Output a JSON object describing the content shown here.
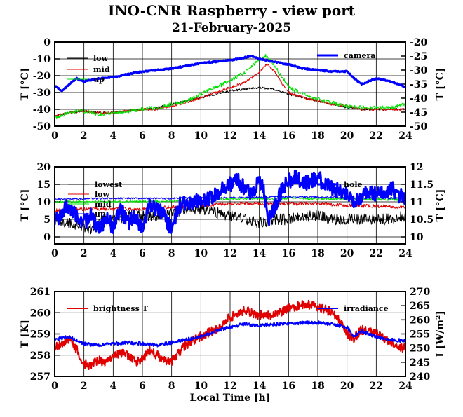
{
  "title": "INO-CNR Raspberry - view port",
  "subtitle": "21-February-2025",
  "colors": {
    "black": "#000000",
    "red": "#e00000",
    "green": "#00e000",
    "blue": "#0000ff"
  },
  "chart_data": [
    {
      "type": "line",
      "x_ticks": [
        "0",
        "2",
        "4",
        "6",
        "8",
        "10",
        "12",
        "14",
        "16",
        "18",
        "20",
        "22",
        "24"
      ],
      "xlim": [
        0,
        24
      ],
      "ylabel": "T [°C]",
      "ylim": [
        -50,
        0
      ],
      "y_ticks": [
        "0",
        "-10",
        "-20",
        "-30",
        "-40",
        "-50"
      ],
      "ylabel_right": "T [°C]",
      "ylim_right": [
        -50,
        -20
      ],
      "y_ticks_right": [
        "-20",
        "-25",
        "-30",
        "-35",
        "-40",
        "-45",
        "-50"
      ],
      "grid": true,
      "legend": [
        {
          "name": "low",
          "color": "#000000"
        },
        {
          "name": "mid",
          "color": "#e00000"
        },
        {
          "name": "up",
          "color": "#00e000"
        }
      ],
      "legend_right": [
        {
          "name": "camera",
          "color": "#0000ff"
        }
      ],
      "series": [
        {
          "name": "low",
          "axis": "left",
          "color": "#000000",
          "width": 1,
          "noise": 0.6,
          "x": [
            0,
            1,
            2,
            3,
            4,
            5,
            6,
            7,
            8,
            9,
            10,
            11,
            12,
            13,
            14,
            15,
            16,
            17,
            18,
            19,
            20,
            21,
            22,
            23,
            24
          ],
          "y": [
            -44,
            -42,
            -41,
            -42,
            -42,
            -41,
            -40,
            -39,
            -37,
            -35,
            -33,
            -31,
            -29,
            -28,
            -27,
            -28,
            -31,
            -33,
            -35,
            -37,
            -39,
            -40,
            -40,
            -40,
            -40
          ]
        },
        {
          "name": "mid",
          "axis": "left",
          "color": "#e00000",
          "width": 1,
          "noise": 0.7,
          "x": [
            0,
            1,
            2,
            3,
            4,
            5,
            6,
            7,
            8,
            9,
            10,
            11,
            12,
            13,
            14,
            14.5,
            15,
            15.5,
            16,
            17,
            18,
            19,
            20,
            21,
            22,
            23,
            24
          ],
          "y": [
            -44,
            -42,
            -41,
            -42,
            -42,
            -41,
            -40,
            -40,
            -38,
            -36,
            -33,
            -30,
            -27,
            -24,
            -18,
            -13,
            -17,
            -24,
            -30,
            -33,
            -35,
            -37,
            -38,
            -40,
            -40,
            -40,
            -40
          ]
        },
        {
          "name": "up",
          "axis": "left",
          "color": "#00e000",
          "width": 1,
          "noise": 1.2,
          "x": [
            0,
            1,
            2,
            3,
            4,
            5,
            6,
            7,
            8,
            9,
            10,
            11,
            12,
            13,
            13.5,
            14,
            14.5,
            15,
            15.5,
            16,
            17,
            18,
            19,
            20,
            21,
            22,
            23,
            24
          ],
          "y": [
            -45,
            -42,
            -41,
            -43,
            -42,
            -41,
            -40,
            -39,
            -37,
            -35,
            -31,
            -27,
            -23,
            -18,
            -14,
            -11,
            -8,
            -14,
            -20,
            -27,
            -31,
            -34,
            -36,
            -38,
            -39,
            -39,
            -39,
            -37
          ]
        },
        {
          "name": "camera",
          "axis": "right",
          "color": "#0000ff",
          "width": 3,
          "noise": 0.25,
          "x": [
            0,
            0.5,
            1,
            1.5,
            2,
            3,
            4,
            5,
            6,
            7,
            8,
            9,
            10,
            11,
            12,
            13,
            13.5,
            14,
            15,
            16,
            17,
            18,
            19,
            20,
            20.5,
            21,
            22,
            23,
            24
          ],
          "y": [
            -35.5,
            -37.5,
            -35,
            -33,
            -34,
            -33,
            -32.5,
            -31.5,
            -30.5,
            -30,
            -29.5,
            -28.5,
            -27.5,
            -27,
            -26.5,
            -25.5,
            -25,
            -26,
            -27,
            -28,
            -29.5,
            -30,
            -30.5,
            -30.5,
            -33,
            -35,
            -33,
            -34,
            -36
          ]
        }
      ]
    },
    {
      "type": "line",
      "x_ticks": [
        "0",
        "2",
        "4",
        "6",
        "8",
        "10",
        "12",
        "14",
        "16",
        "18",
        "20",
        "22",
        "24"
      ],
      "xlim": [
        0,
        24
      ],
      "ylabel": "T [°C]",
      "ylim": [
        -2,
        20
      ],
      "y_ticks": [
        "20",
        "15",
        "10",
        "5",
        "0"
      ],
      "ylabel_right": "T [°C]",
      "ylim_right": [
        9.8,
        12
      ],
      "y_ticks_right": [
        "12",
        "11.5",
        "11",
        "10.5",
        "10"
      ],
      "grid": true,
      "legend": [
        {
          "name": "lowest",
          "color": "#000000"
        },
        {
          "name": "low",
          "color": "#e00000"
        },
        {
          "name": "mid",
          "color": "#00e000"
        },
        {
          "name": "up",
          "color": "#0000ff"
        }
      ],
      "legend_right": [
        {
          "name": "hole",
          "color": "#0000ff"
        }
      ],
      "series": [
        {
          "name": "lowest",
          "axis": "left",
          "color": "#000000",
          "width": 1,
          "noise": 1.6,
          "x": [
            0,
            1,
            2,
            2.5,
            3,
            4,
            5,
            6,
            7,
            8,
            9,
            10,
            11,
            12,
            13,
            14,
            15,
            16,
            17,
            18,
            19,
            20,
            21,
            22,
            23,
            24
          ],
          "y": [
            5,
            4,
            3,
            2,
            4,
            5,
            6,
            6,
            6,
            7,
            8,
            8,
            7,
            6,
            5,
            4,
            5,
            5,
            6,
            6,
            5,
            5,
            5,
            5,
            5,
            6
          ]
        },
        {
          "name": "low",
          "axis": "left",
          "color": "#e00000",
          "width": 1,
          "noise": 0.5,
          "x": [
            0,
            2,
            4,
            6,
            8,
            10,
            12,
            14,
            16,
            18,
            20,
            22,
            24
          ],
          "y": [
            7.5,
            8,
            8,
            8,
            8.5,
            9,
            9.5,
            9.5,
            9.5,
            9.5,
            9,
            8.8,
            8.5
          ]
        },
        {
          "name": "mid",
          "axis": "left",
          "color": "#00e000",
          "width": 1,
          "noise": 0.35,
          "x": [
            0,
            4,
            8,
            12,
            16,
            20,
            24
          ],
          "y": [
            10,
            10,
            10.2,
            10.8,
            11,
            10.8,
            10.6
          ]
        },
        {
          "name": "up",
          "axis": "left",
          "color": "#0000ff",
          "width": 1,
          "noise": 0.25,
          "x": [
            0,
            4,
            8,
            12,
            16,
            20,
            24
          ],
          "y": [
            10.8,
            11,
            11,
            11.2,
            11.5,
            11.2,
            11
          ]
        },
        {
          "name": "hole",
          "axis": "right",
          "color": "#0000ff",
          "width": 3,
          "noise": 0.22,
          "x": [
            0,
            0.5,
            1,
            1.5,
            2,
            2.5,
            3,
            3.5,
            4,
            4.5,
            5,
            5.5,
            6,
            6.5,
            7,
            7.5,
            8,
            8.5,
            9,
            10,
            11,
            11.5,
            12,
            12.5,
            13,
            13.5,
            14,
            14.3,
            14.6,
            15,
            15.5,
            16,
            16.5,
            17,
            17.5,
            18,
            18.5,
            19,
            19.5,
            20,
            20.5,
            21,
            21.5,
            22,
            22.5,
            23,
            23.5,
            24
          ],
          "y": [
            10.4,
            10.7,
            10.9,
            10.6,
            10.4,
            10.6,
            10.2,
            10.5,
            10.3,
            10.8,
            10.4,
            10.6,
            10.2,
            10.9,
            10.8,
            10.6,
            10.2,
            10.9,
            11,
            11,
            11.2,
            11.4,
            11.5,
            11.6,
            11.4,
            11.2,
            11.6,
            11.3,
            10.5,
            10.8,
            11.3,
            11.6,
            11.7,
            11.5,
            11.6,
            11.7,
            11.5,
            11.4,
            11.3,
            11.2,
            11,
            11.1,
            11.3,
            11.2,
            11.3,
            11.4,
            11.2,
            11.1
          ]
        }
      ]
    },
    {
      "type": "line",
      "x_ticks": [
        "0",
        "2",
        "4",
        "6",
        "8",
        "10",
        "12",
        "14",
        "16",
        "18",
        "20",
        "22",
        "24"
      ],
      "xlim": [
        0,
        24
      ],
      "xlabel": "Local Time [h]",
      "ylabel": "T [K]",
      "ylim": [
        257,
        261
      ],
      "y_ticks": [
        "261",
        "260",
        "259",
        "258",
        "257"
      ],
      "ylabel_right": "I [W/m²]",
      "ylim_right": [
        240,
        270
      ],
      "y_ticks_right": [
        "270",
        "265",
        "260",
        "255",
        "250",
        "245",
        "240"
      ],
      "grid": true,
      "legend": [
        {
          "name": "brightness T",
          "color": "#e00000"
        }
      ],
      "legend_right": [
        {
          "name": "irradiance",
          "color": "#0000ff"
        }
      ],
      "series": [
        {
          "name": "brightness T",
          "axis": "left",
          "color": "#e00000",
          "width": 2,
          "noise": 0.22,
          "x": [
            0,
            0.5,
            1,
            1.5,
            2,
            2.5,
            3,
            3.5,
            4,
            4.5,
            5,
            5.5,
            6,
            6.5,
            7,
            7.5,
            8,
            9,
            10,
            11,
            12,
            13,
            14,
            15,
            16,
            17,
            18,
            19,
            19.5,
            20,
            20.5,
            21,
            22,
            23,
            24
          ],
          "y": [
            258.3,
            258.6,
            258.7,
            258.3,
            257.6,
            257.5,
            257.8,
            257.6,
            257.9,
            258.1,
            258,
            257.7,
            257.8,
            258.2,
            258,
            257.8,
            257.7,
            258.5,
            258.9,
            259.2,
            259.8,
            260.1,
            259.9,
            259.9,
            260.2,
            260.4,
            260.3,
            260,
            259.6,
            259,
            258.8,
            259.2,
            259,
            258.6,
            258.3
          ]
        },
        {
          "name": "irradiance",
          "axis": "right",
          "color": "#0000ff",
          "width": 2,
          "noise": 0.6,
          "x": [
            0,
            1,
            2,
            3,
            4,
            5,
            6,
            7,
            8,
            9,
            10,
            11,
            12,
            13,
            14,
            15,
            16,
            17,
            18,
            19,
            20,
            20.5,
            21,
            22,
            23,
            24
          ],
          "y": [
            253,
            254,
            251.5,
            251,
            251.5,
            252,
            251.5,
            251,
            252,
            253,
            254,
            256,
            257.5,
            258.5,
            258,
            258.5,
            258.5,
            259,
            259,
            258.5,
            257.5,
            254,
            256,
            254,
            253,
            252.5
          ]
        }
      ]
    }
  ]
}
